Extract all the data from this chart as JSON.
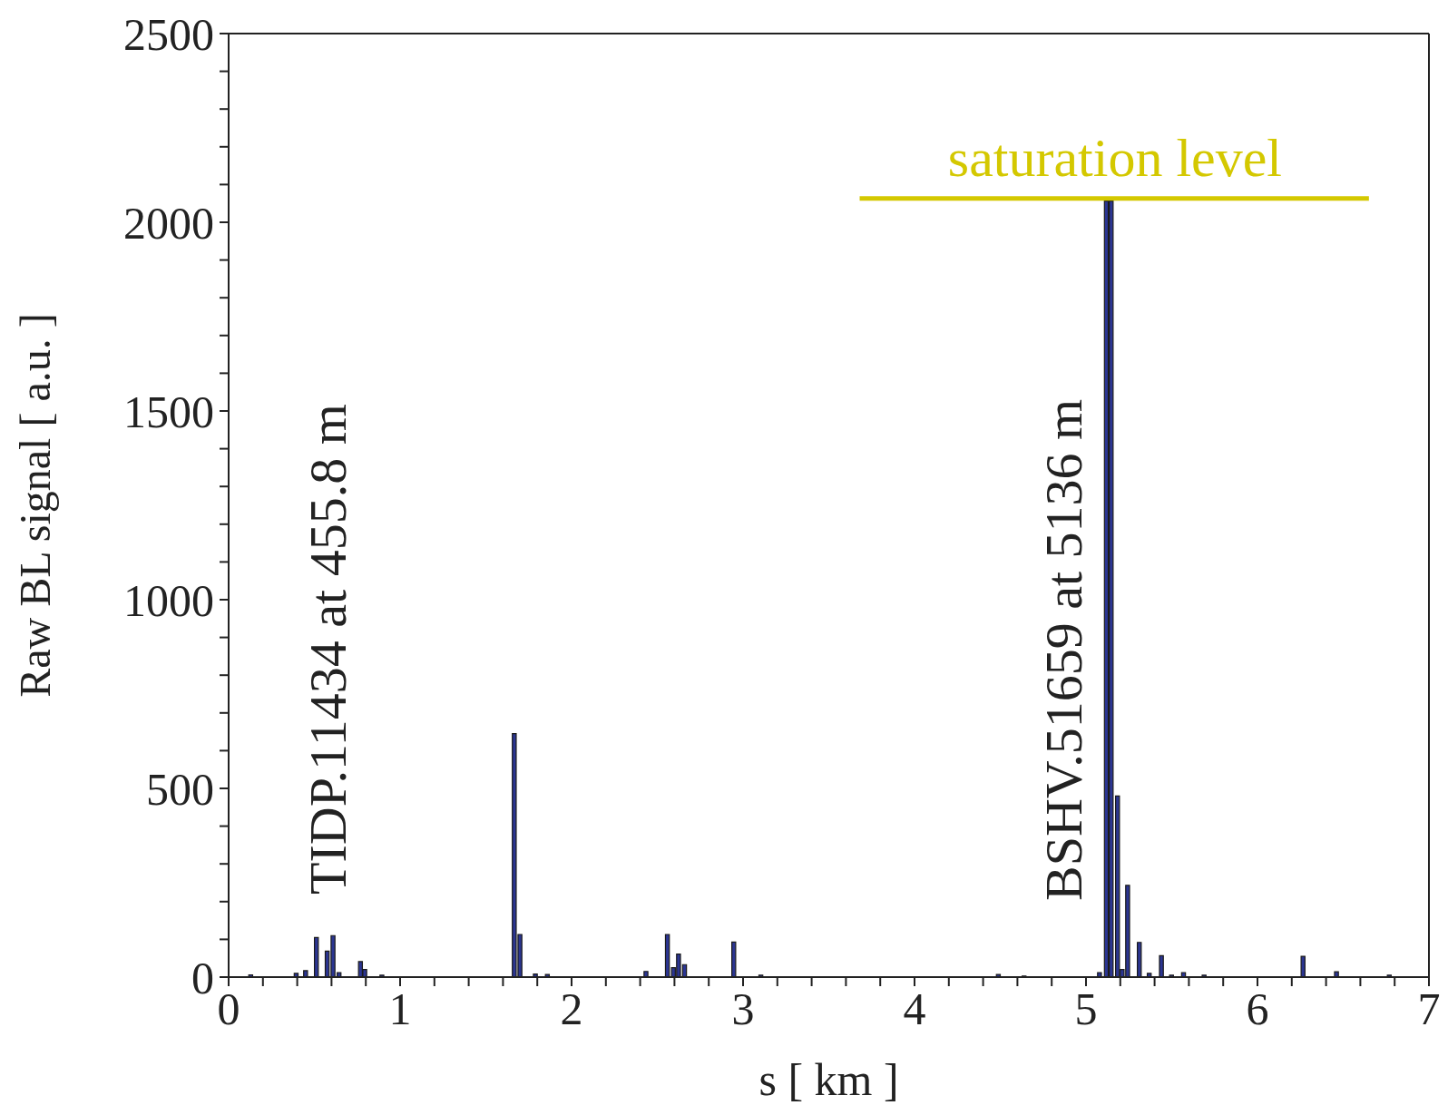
{
  "chart_data": {
    "type": "bar",
    "xlabel": "s [ km ]",
    "ylabel": "Raw BL signal [ a.u. ]",
    "x": [
      0.13,
      0.395,
      0.45,
      0.513,
      0.576,
      0.61,
      0.645,
      0.77,
      0.795,
      0.895,
      1.667,
      1.7,
      1.79,
      1.86,
      2.435,
      2.56,
      2.595,
      2.625,
      2.66,
      2.947,
      3.105,
      4.49,
      4.64,
      5.08,
      5.12,
      5.148,
      5.185,
      5.212,
      5.244,
      5.312,
      5.37,
      5.441,
      5.5,
      5.57,
      5.69,
      6.267,
      6.462,
      6.77
    ],
    "series": [
      {
        "color": "#2b3592",
        "values": [
          6,
          10,
          17,
          105,
          69,
          110,
          12,
          41,
          20,
          5,
          645,
          113,
          8,
          7,
          15,
          113,
          25,
          61,
          33,
          93,
          5,
          7,
          3,
          12,
          2056,
          2056,
          480,
          20,
          243,
          92,
          10,
          57,
          5,
          12,
          5,
          55,
          14,
          5
        ]
      },
      {
        "type": "line",
        "name": "saturation level",
        "color": "#d4c800",
        "x": [
          3.68,
          6.65
        ],
        "values": [
          2063,
          2063
        ]
      }
    ],
    "xlim": [
      0,
      7
    ],
    "xticks": [
      0,
      {
        "value": 0.2,
        "label": null
      },
      {
        "value": 0.4,
        "label": null
      },
      {
        "value": 0.6,
        "label": null
      },
      {
        "value": 0.8,
        "label": null
      },
      1,
      {
        "value": 1.2,
        "label": null
      },
      {
        "value": 1.4,
        "label": null
      },
      {
        "value": 1.6,
        "label": null
      },
      {
        "value": 1.8,
        "label": null
      },
      2,
      {
        "value": 2.2,
        "label": null
      },
      {
        "value": 2.4,
        "label": null
      },
      {
        "value": 2.6,
        "label": null
      },
      {
        "value": 2.8,
        "label": null
      },
      3,
      {
        "value": 3.2,
        "label": null
      },
      {
        "value": 3.4,
        "label": null
      },
      {
        "value": 3.6,
        "label": null
      },
      {
        "value": 3.8,
        "label": null
      },
      4,
      {
        "value": 4.2,
        "label": null
      },
      {
        "value": 4.4,
        "label": null
      },
      {
        "value": 4.6,
        "label": null
      },
      {
        "value": 4.8,
        "label": null
      },
      5,
      {
        "value": 5.2,
        "label": null
      },
      {
        "value": 5.4,
        "label": null
      },
      {
        "value": 5.6,
        "label": null
      },
      {
        "value": 5.8,
        "label": null
      },
      6,
      {
        "value": 6.2,
        "label": null
      },
      {
        "value": 6.4,
        "label": null
      },
      {
        "value": 6.6,
        "label": null
      },
      {
        "value": 6.8,
        "label": null
      },
      7
    ],
    "ylim": [
      0,
      2500
    ],
    "yticks": [
      0,
      {
        "value": 100,
        "label": null
      },
      {
        "value": 200,
        "label": null
      },
      {
        "value": 300,
        "label": null
      },
      {
        "value": 400,
        "label": null
      },
      500,
      {
        "value": 600,
        "label": null
      },
      {
        "value": 700,
        "label": null
      },
      {
        "value": 800,
        "label": null
      },
      {
        "value": 900,
        "label": null
      },
      1000,
      {
        "value": 1100,
        "label": null
      },
      {
        "value": 1200,
        "label": null
      },
      {
        "value": 1300,
        "label": null
      },
      {
        "value": 1400,
        "label": null
      },
      1500,
      {
        "value": 1600,
        "label": null
      },
      {
        "value": 1700,
        "label": null
      },
      {
        "value": 1800,
        "label": null
      },
      {
        "value": 1900,
        "label": null
      },
      2000,
      {
        "value": 2100,
        "label": null
      },
      {
        "value": 2200,
        "label": null
      },
      {
        "value": 2300,
        "label": null
      },
      {
        "value": 2400,
        "label": null
      },
      2500
    ],
    "annotations": [
      "TIDP.11434 at 455.8 m",
      "BSHV.51659 at 5136 m"
    ],
    "marker": "none"
  }
}
